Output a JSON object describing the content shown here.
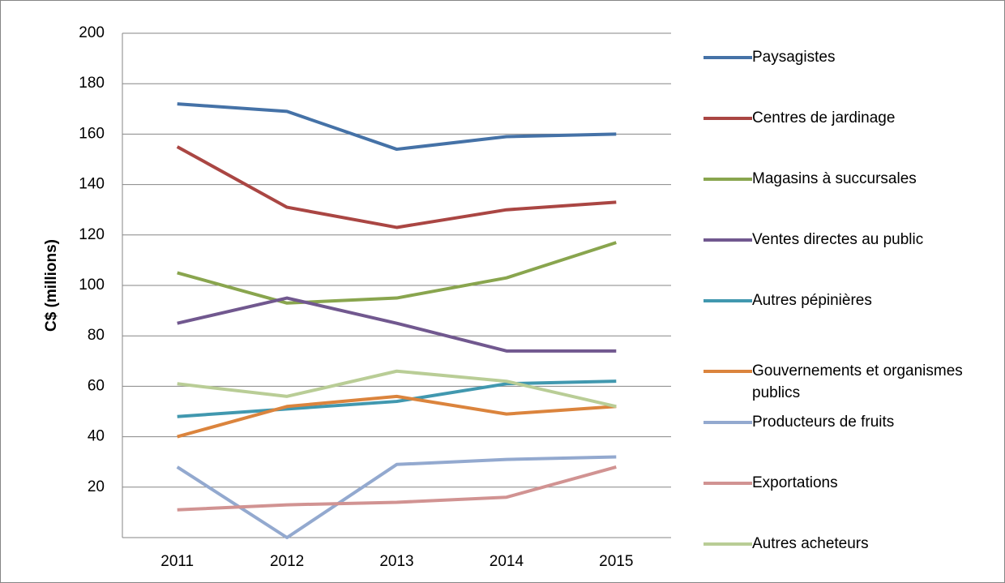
{
  "chart_data": {
    "type": "line",
    "y_label": "C$ (millions)",
    "categories": [
      "2011",
      "2012",
      "2013",
      "2014",
      "2015"
    ],
    "series": [
      {
        "name": "Paysagistes",
        "color": "#4572a7",
        "values": [
          172,
          169,
          154,
          159,
          160
        ]
      },
      {
        "name": "Centres de jardinage",
        "color": "#aa4643",
        "values": [
          155,
          131,
          123,
          130,
          133
        ]
      },
      {
        "name": "Magasins à succursales",
        "color": "#89a54e",
        "values": [
          105,
          93,
          95,
          103,
          117
        ]
      },
      {
        "name": "Ventes directes au public",
        "color": "#71588f",
        "values": [
          85,
          95,
          85,
          74,
          74
        ]
      },
      {
        "name": "Autres pépinières",
        "color": "#4198af",
        "values": [
          48,
          51,
          54,
          61,
          62
        ]
      },
      {
        "name": "Gouvernements et organismes publics",
        "color": "#db843d",
        "values": [
          40,
          52,
          56,
          49,
          52
        ]
      },
      {
        "name": "Producteurs de fruits",
        "color": "#93a9cf",
        "values": [
          28,
          0,
          29,
          31,
          32
        ]
      },
      {
        "name": "Exportations",
        "color": "#d19392",
        "values": [
          11,
          13,
          14,
          16,
          28
        ]
      },
      {
        "name": "Autres acheteurs",
        "color": "#b9cd96",
        "values": [
          61,
          56,
          66,
          62,
          52
        ]
      }
    ],
    "ylim": [
      0,
      200
    ],
    "yticks": [
      20,
      40,
      60,
      80,
      100,
      120,
      140,
      160,
      180,
      200
    ],
    "grid": true
  }
}
